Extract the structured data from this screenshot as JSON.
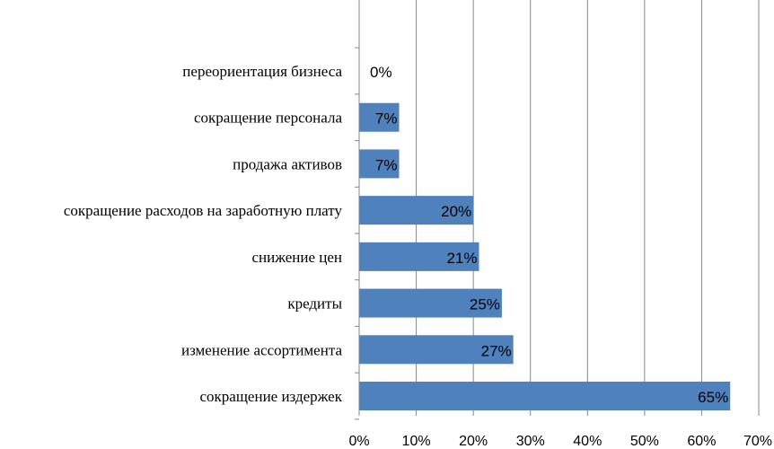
{
  "chart_data": {
    "type": "bar",
    "orientation": "horizontal",
    "title": "",
    "xlabel": "",
    "ylabel": "",
    "xlim": [
      0,
      70
    ],
    "x_tick_values": [
      0,
      10,
      20,
      30,
      40,
      50,
      60,
      70
    ],
    "x_tick_labels": [
      "0%",
      "10%",
      "20%",
      "30%",
      "40%",
      "50%",
      "60%",
      "70%"
    ],
    "grid": "vertical",
    "legend": "none",
    "bar_color": "#4f81bd",
    "categories": [
      "переориентация бизнеса",
      "сокращение персонала",
      "продажа активов",
      "сокращение расходов на заработную плату",
      "снижение цен",
      "кредиты",
      "изменение ассортимента",
      "сокращение издержек"
    ],
    "values": [
      0,
      7,
      7,
      20,
      21,
      25,
      27,
      65
    ],
    "data_labels": [
      "0%",
      "7%",
      "7%",
      "20%",
      "21%",
      "25%",
      "27%",
      "65%"
    ]
  }
}
